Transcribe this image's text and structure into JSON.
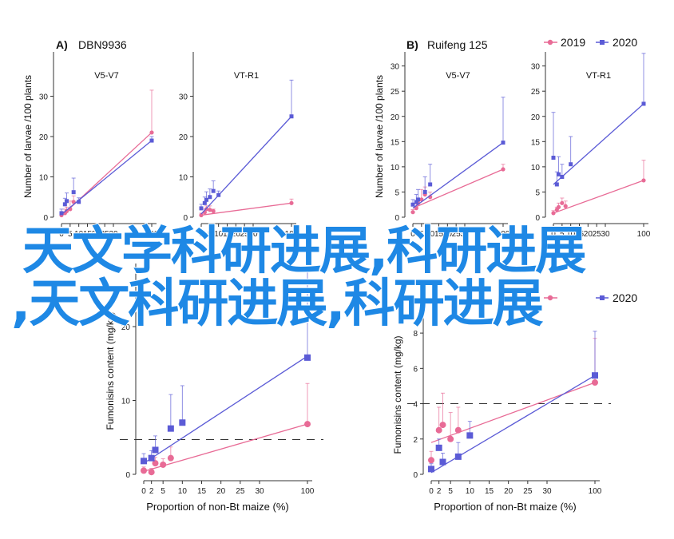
{
  "colors": {
    "s2019": "#e86b96",
    "s2020": "#5b5bd6",
    "axis": "#333333",
    "overlay": "#1e88e5"
  },
  "legend": {
    "items": [
      "2019",
      "2020"
    ]
  },
  "overlay": {
    "line1": "天文学科研进展,科研进展",
    "line2": ",天文科研进展,科研进展"
  },
  "labels": {
    "a_prefix": "A)",
    "a_name": "DBN9936",
    "b_prefix": "B)",
    "b_name": "Ruifeng 125"
  },
  "chart_data": [
    {
      "id": "A-V5V7",
      "type": "line",
      "panel_title": "V5-V7",
      "ylabel": "Number of larvae /100 plants",
      "ylim": [
        0,
        40
      ],
      "yticks": [
        0,
        10,
        20,
        30
      ],
      "xticks": [
        0,
        5,
        10,
        15,
        20,
        25,
        30,
        100
      ],
      "series": [
        {
          "name": "2019",
          "points": [
            [
              0,
              0.5
            ],
            [
              2,
              1.0
            ],
            [
              3,
              1.5
            ],
            [
              5,
              2.0
            ],
            [
              7,
              3.8
            ],
            [
              100,
              21.0
            ]
          ],
          "err": [
            0.5,
            1.0,
            1.0,
            2.0,
            1.5,
            10.5
          ],
          "fit": [
            [
              0,
              0.3
            ],
            [
              100,
              21.0
            ]
          ]
        },
        {
          "name": "2020",
          "points": [
            [
              0,
              1.0
            ],
            [
              2,
              3.2
            ],
            [
              3,
              4.0
            ],
            [
              7,
              6.2
            ],
            [
              10,
              3.8
            ],
            [
              100,
              19.0
            ]
          ],
          "err": [
            1.0,
            1.5,
            2.0,
            3.5,
            1.0,
            1.0
          ],
          "fit": [
            [
              0,
              0.7
            ],
            [
              100,
              19.0
            ]
          ]
        }
      ]
    },
    {
      "id": "A-VTR1",
      "type": "line",
      "panel_title": "VT-R1",
      "ylabel": "",
      "ylim": [
        0,
        40
      ],
      "yticks": [
        0,
        10,
        20,
        30
      ],
      "xticks": [
        0,
        5,
        10,
        15,
        20,
        25,
        30,
        100
      ],
      "series": [
        {
          "name": "2019",
          "points": [
            [
              0,
              0.5
            ],
            [
              2,
              1.2
            ],
            [
              3,
              2.0
            ],
            [
              5,
              1.8
            ],
            [
              7,
              1.5
            ],
            [
              100,
              3.5
            ]
          ],
          "err": [
            0.5,
            0.8,
            0.8,
            1.0,
            0.5,
            1.0
          ],
          "fit": [
            [
              0,
              0.5
            ],
            [
              100,
              3.5
            ]
          ]
        },
        {
          "name": "2020",
          "points": [
            [
              0,
              2.2
            ],
            [
              2,
              3.5
            ],
            [
              3,
              4.3
            ],
            [
              5,
              5.0
            ],
            [
              7,
              6.5
            ],
            [
              10,
              5.5
            ],
            [
              100,
              25.0
            ]
          ],
          "err": [
            1.0,
            1.5,
            2.0,
            2.0,
            2.5,
            1.0,
            9.0
          ],
          "fit": [
            [
              0,
              0.8
            ],
            [
              100,
              25.0
            ]
          ]
        }
      ]
    },
    {
      "id": "B-V5V7",
      "type": "line",
      "panel_title": "V5-V7",
      "ylabel": "Number of larvae /100 plants",
      "ylim": [
        0,
        32
      ],
      "yticks": [
        0,
        5,
        10,
        15,
        20,
        25,
        30
      ],
      "xticks": [
        0,
        5,
        10,
        15,
        20,
        25,
        30,
        100
      ],
      "series": [
        {
          "name": "2019",
          "points": [
            [
              0,
              1.0
            ],
            [
              2,
              1.8
            ],
            [
              3,
              2.8
            ],
            [
              5,
              3.5
            ],
            [
              7,
              4.5
            ],
            [
              10,
              4.0
            ],
            [
              100,
              9.5
            ]
          ],
          "err": [
            0.5,
            1.0,
            1.0,
            2.0,
            1.5,
            1.0,
            1.0
          ],
          "fit": [
            [
              0,
              1.8
            ],
            [
              100,
              9.5
            ]
          ]
        },
        {
          "name": "2020",
          "points": [
            [
              0,
              2.5
            ],
            [
              2,
              3.0
            ],
            [
              3,
              3.5
            ],
            [
              7,
              5.0
            ],
            [
              10,
              6.5
            ],
            [
              100,
              14.8
            ]
          ],
          "err": [
            1.0,
            1.5,
            2.0,
            3.0,
            4.0,
            9.0
          ],
          "fit": [
            [
              0,
              1.8
            ],
            [
              100,
              14.8
            ]
          ]
        }
      ]
    },
    {
      "id": "B-VTR1",
      "type": "line",
      "panel_title": "VT-R1",
      "ylabel": "",
      "ylim": [
        0,
        32
      ],
      "yticks": [
        0,
        5,
        10,
        15,
        20,
        25,
        30
      ],
      "xticks": [
        0,
        5,
        10,
        15,
        20,
        25,
        30,
        100
      ],
      "series": [
        {
          "name": "2019",
          "points": [
            [
              0,
              0.8
            ],
            [
              2,
              1.5
            ],
            [
              3,
              2.0
            ],
            [
              5,
              2.8
            ],
            [
              7,
              2.2
            ],
            [
              100,
              7.3
            ]
          ],
          "err": [
            0.5,
            0.5,
            0.8,
            1.0,
            1.0,
            4.0
          ],
          "fit": [
            [
              0,
              0.8
            ],
            [
              100,
              7.3
            ]
          ]
        },
        {
          "name": "2020",
          "points": [
            [
              0,
              11.8
            ],
            [
              2,
              6.5
            ],
            [
              3,
              8.5
            ],
            [
              5,
              8.0
            ],
            [
              10,
              10.5
            ],
            [
              100,
              22.5
            ]
          ],
          "err": [
            9.0,
            2.5,
            3.5,
            2.5,
            5.5,
            10.0
          ],
          "fit": [
            [
              0,
              6.5
            ],
            [
              100,
              22.5
            ]
          ]
        }
      ]
    },
    {
      "id": "A-fumonisins",
      "type": "line",
      "panel_title": "",
      "ylabel": "Fumonisins content (mg/kg)",
      "xlabel": "Proportion of non-Bt maize (%)",
      "ylim": [
        0,
        28
      ],
      "yticks": [
        0,
        10,
        20
      ],
      "xticks": [
        0,
        2,
        5,
        10,
        15,
        20,
        25,
        30,
        100
      ],
      "threshold": 4.7,
      "series": [
        {
          "name": "2019",
          "points": [
            [
              0,
              0.5
            ],
            [
              2,
              0.3
            ],
            [
              3,
              1.5
            ],
            [
              5,
              1.3
            ],
            [
              7,
              2.2
            ],
            [
              100,
              6.8
            ]
          ],
          "err": [
            0.5,
            0.5,
            0.8,
            0.8,
            1.5,
            5.5
          ],
          "fit": [
            [
              0,
              0.4
            ],
            [
              100,
              6.8
            ]
          ]
        },
        {
          "name": "2020",
          "points": [
            [
              0,
              1.8
            ],
            [
              2,
              2.2
            ],
            [
              3,
              3.3
            ],
            [
              7,
              6.2
            ],
            [
              10,
              7.0
            ],
            [
              100,
              15.8
            ]
          ],
          "err": [
            1.0,
            1.0,
            1.9,
            4.6,
            5.0,
            12.5
          ],
          "fit": [
            [
              0,
              1.5
            ],
            [
              100,
              16.0
            ]
          ]
        }
      ]
    },
    {
      "id": "B-fumonisins",
      "type": "line",
      "panel_title": "",
      "ylabel": "Fumonisins content (mg/kg)",
      "xlabel": "Proportion of non-Bt maize (%)",
      "ylim": [
        0,
        9
      ],
      "yticks": [
        0,
        2,
        4,
        6,
        8
      ],
      "xticks": [
        0,
        2,
        5,
        10,
        15,
        20,
        25,
        30,
        100
      ],
      "threshold": 4,
      "series": [
        {
          "name": "2019",
          "points": [
            [
              0,
              0.8
            ],
            [
              2,
              2.5
            ],
            [
              3,
              2.8
            ],
            [
              5,
              2.0
            ],
            [
              7,
              2.5
            ],
            [
              100,
              5.2
            ]
          ],
          "err": [
            0.5,
            1.3,
            1.8,
            1.5,
            1.3,
            2.5
          ],
          "fit": [
            [
              0,
              1.8
            ],
            [
              100,
              5.2
            ]
          ]
        },
        {
          "name": "2020",
          "points": [
            [
              0,
              0.3
            ],
            [
              2,
              1.5
            ],
            [
              3,
              0.7
            ],
            [
              7,
              1.0
            ],
            [
              10,
              2.2
            ],
            [
              100,
              5.6
            ]
          ],
          "err": [
            0.3,
            0.5,
            0.5,
            0.8,
            0.8,
            2.5
          ],
          "fit": [
            [
              0,
              0.1
            ],
            [
              100,
              5.6
            ]
          ]
        }
      ]
    }
  ]
}
